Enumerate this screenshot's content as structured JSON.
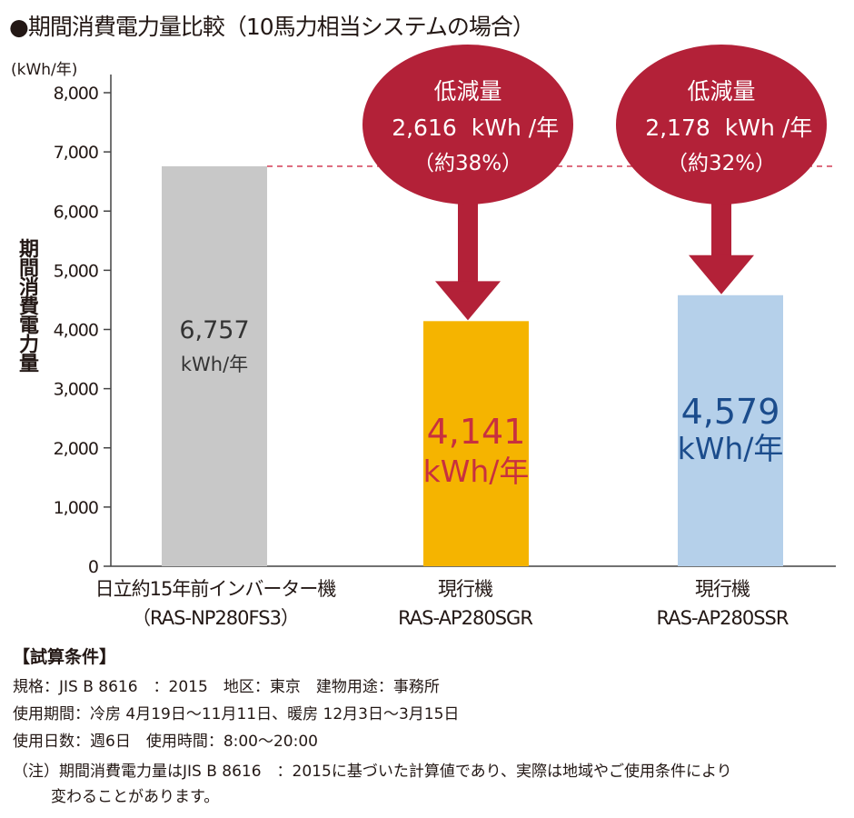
{
  "title": "●期間消費電力量比較（10馬力相当システムの場合）",
  "unit_label": "(kWh/年)",
  "colors": {
    "axis": "#444444",
    "bar_old": "#c8c8c8",
    "bar_sgr": "#f5b400",
    "bar_ssr": "#b5d0ea",
    "bubble": "#b32138",
    "reference_line": "#d64b62",
    "sgr_text": "#c8303f",
    "ssr_text": "#1b4c8c"
  },
  "chart_data": {
    "type": "bar",
    "ylabel": "期間消費電力量",
    "ylim": [
      0,
      8000
    ],
    "yticks": [
      0,
      1000,
      2000,
      3000,
      4000,
      5000,
      6000,
      7000,
      8000
    ],
    "ytick_labels": [
      "0",
      "1,000",
      "2,000",
      "3,000",
      "4,000",
      "5,000",
      "6,000",
      "7,000",
      "8,000"
    ],
    "reference_value": 6757,
    "categories": [
      {
        "line1": "日立約15年前インバーター機",
        "line2": "（RAS-NP280FS3）"
      },
      {
        "line1": "現行機",
        "line2": "RAS-AP280SGR"
      },
      {
        "line1": "現行機",
        "line2": "RAS-AP280SSR"
      }
    ],
    "values": [
      6757,
      4141,
      4579
    ],
    "value_labels": [
      {
        "number": "6,757",
        "unit": "kWh/年"
      },
      {
        "number": "4,141",
        "unit": "kWh/年"
      },
      {
        "number": "4,579",
        "unit": "kWh/年"
      }
    ],
    "reductions": [
      null,
      {
        "title": "低減量",
        "amount": "2,616",
        "unit": "kWh /年",
        "percent": "（約38%）"
      },
      {
        "title": "低減量",
        "amount": "2,178",
        "unit": "kWh /年",
        "percent": "（約32%）"
      }
    ]
  },
  "conditions": {
    "heading": "【試算条件】",
    "line1": "規格：JIS B 8616　：2015　地区：東京　建物用途：事務所",
    "line2": "使用期間：冷房 4月19日〜11月11日、暖房 12月3日〜3月15日",
    "line3": "使用日数：週6日　使用時間：8:00〜20:00"
  },
  "note": {
    "line1": "（注）期間消費電力量はJIS B 8616　：2015に基づいた計算値であり、実際は地域やご使用条件により",
    "line2": "変わることがあります。"
  }
}
